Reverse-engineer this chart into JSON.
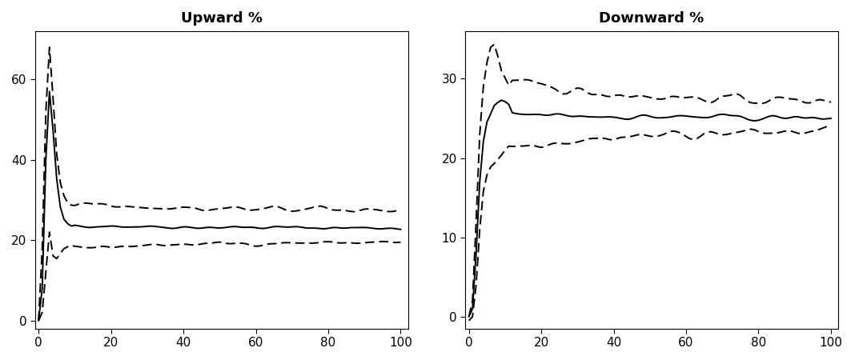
{
  "title_left": "Upward %",
  "title_right": "Downward %",
  "x_max": 100,
  "upward": {
    "ylim": [
      -2,
      72
    ],
    "yticks": [
      0,
      20,
      40,
      60
    ],
    "yticklabels": [
      "0",
      "20",
      "40",
      "60"
    ]
  },
  "downward": {
    "ylim": [
      -1.5,
      36
    ],
    "yticks": [
      0,
      10,
      20,
      30
    ],
    "yticklabels": [
      "0",
      "10",
      "20",
      "30"
    ]
  },
  "xticks": [
    0,
    20,
    40,
    60,
    80,
    100
  ],
  "line_color": "#000000",
  "bg_color": "#ffffff",
  "title_fontsize": 13,
  "axis_fontsize": 11,
  "lw_solid": 1.4,
  "lw_dashed": 1.4
}
